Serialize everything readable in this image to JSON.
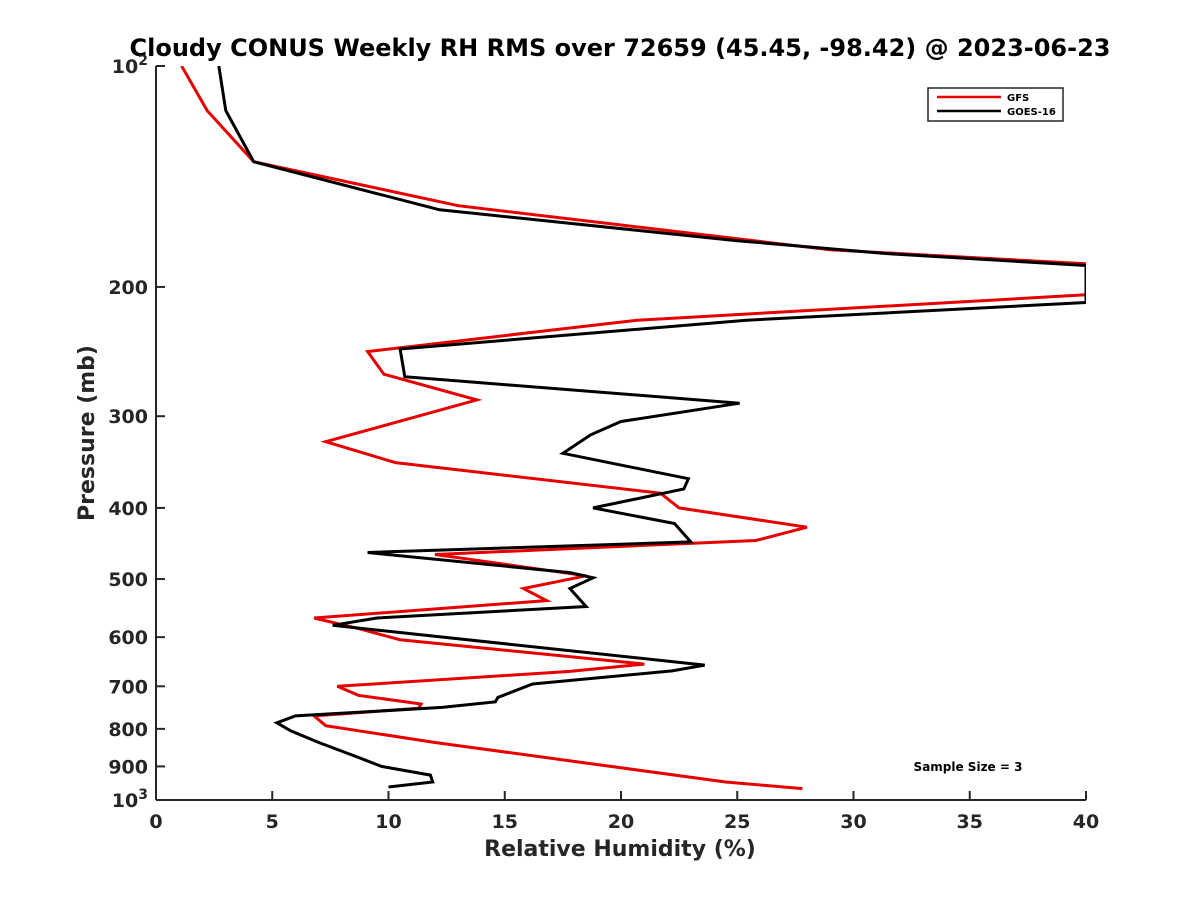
{
  "chart_data": {
    "type": "line",
    "title": "Cloudy CONUS Weekly RH RMS over 72659 (45.45, -98.42) @ 2023-06-23",
    "xlabel": "Relative Humidity (%)",
    "ylabel": "Pressure (mb)",
    "xlim": [
      0,
      40
    ],
    "ylim": [
      100,
      1000
    ],
    "yscale": "log",
    "y_reversed": true,
    "grid": false,
    "legend_position": "top-right",
    "xticks": [
      0,
      5,
      10,
      15,
      20,
      25,
      30,
      35,
      40
    ],
    "xtick_labels": [
      "0",
      "5",
      "10",
      "15",
      "20",
      "25",
      "30",
      "35",
      "40"
    ],
    "yticks": [
      100,
      200,
      300,
      400,
      500,
      600,
      700,
      800,
      900,
      1000
    ],
    "ytick_labels": [
      {
        "base": "10",
        "exp": "2"
      },
      {
        "base": "200",
        "exp": ""
      },
      {
        "base": "300",
        "exp": ""
      },
      {
        "base": "400",
        "exp": ""
      },
      {
        "base": "500",
        "exp": ""
      },
      {
        "base": "600",
        "exp": ""
      },
      {
        "base": "700",
        "exp": ""
      },
      {
        "base": "800",
        "exp": ""
      },
      {
        "base": "900",
        "exp": ""
      },
      {
        "base": "10",
        "exp": "3"
      }
    ],
    "series": [
      {
        "name": "GFS",
        "color": "#e60000",
        "points": [
          [
            1.1,
            100
          ],
          [
            2.2,
            115
          ],
          [
            4.2,
            135
          ],
          [
            13,
            155
          ],
          [
            29,
            178
          ],
          [
            40,
            186
          ],
          [
            40,
            205
          ],
          [
            20.7,
            222
          ],
          [
            16.5,
            230
          ],
          [
            9.1,
            245
          ],
          [
            9.8,
            263
          ],
          [
            13.8,
            285
          ],
          [
            7.3,
            325
          ],
          [
            10.3,
            347
          ],
          [
            21.7,
            382
          ],
          [
            22.5,
            400
          ],
          [
            28,
            425
          ],
          [
            25.8,
            443
          ],
          [
            12,
            463
          ],
          [
            13.5,
            470
          ],
          [
            18.5,
            495
          ],
          [
            15.8,
            515
          ],
          [
            16.8,
            535
          ],
          [
            6.8,
            565
          ],
          [
            8.8,
            585
          ],
          [
            10.5,
            605
          ],
          [
            21,
            653
          ],
          [
            17.8,
            668
          ],
          [
            7.8,
            700
          ],
          [
            8.7,
            720
          ],
          [
            11.4,
            740
          ],
          [
            11.3,
            750
          ],
          [
            6.8,
            768
          ],
          [
            7.3,
            792
          ],
          [
            12,
            835
          ],
          [
            24.5,
            945
          ],
          [
            27.8,
            965
          ]
        ]
      },
      {
        "name": "GOES-16",
        "color": "#000000",
        "points": [
          [
            2.7,
            100
          ],
          [
            3,
            115
          ],
          [
            4.2,
            135
          ],
          [
            12.2,
            157
          ],
          [
            25,
            173
          ],
          [
            31.3,
            180
          ],
          [
            40,
            187
          ],
          [
            40,
            210
          ],
          [
            25.4,
            222
          ],
          [
            10.5,
            243
          ],
          [
            10.7,
            265
          ],
          [
            25.1,
            288
          ],
          [
            20,
            305
          ],
          [
            18.7,
            318
          ],
          [
            17.5,
            337
          ],
          [
            22.9,
            365
          ],
          [
            22.7,
            377
          ],
          [
            18.8,
            400
          ],
          [
            22.3,
            420
          ],
          [
            23,
            445
          ],
          [
            9.1,
            460
          ],
          [
            17.8,
            490
          ],
          [
            18.8,
            498
          ],
          [
            17.8,
            515
          ],
          [
            18.5,
            545
          ],
          [
            9.5,
            565
          ],
          [
            7.6,
            578
          ],
          [
            10.2,
            590
          ],
          [
            23.6,
            655
          ],
          [
            22.2,
            667
          ],
          [
            16.2,
            695
          ],
          [
            14.7,
            725
          ],
          [
            14.6,
            735
          ],
          [
            12.3,
            748
          ],
          [
            6,
            768
          ],
          [
            5.2,
            785
          ],
          [
            5.8,
            805
          ],
          [
            7,
            835
          ],
          [
            8.7,
            875
          ],
          [
            9.7,
            900
          ],
          [
            11.8,
            925
          ],
          [
            11.9,
            945
          ],
          [
            10,
            960
          ]
        ]
      }
    ],
    "annotation": "Sample Size = 3"
  }
}
